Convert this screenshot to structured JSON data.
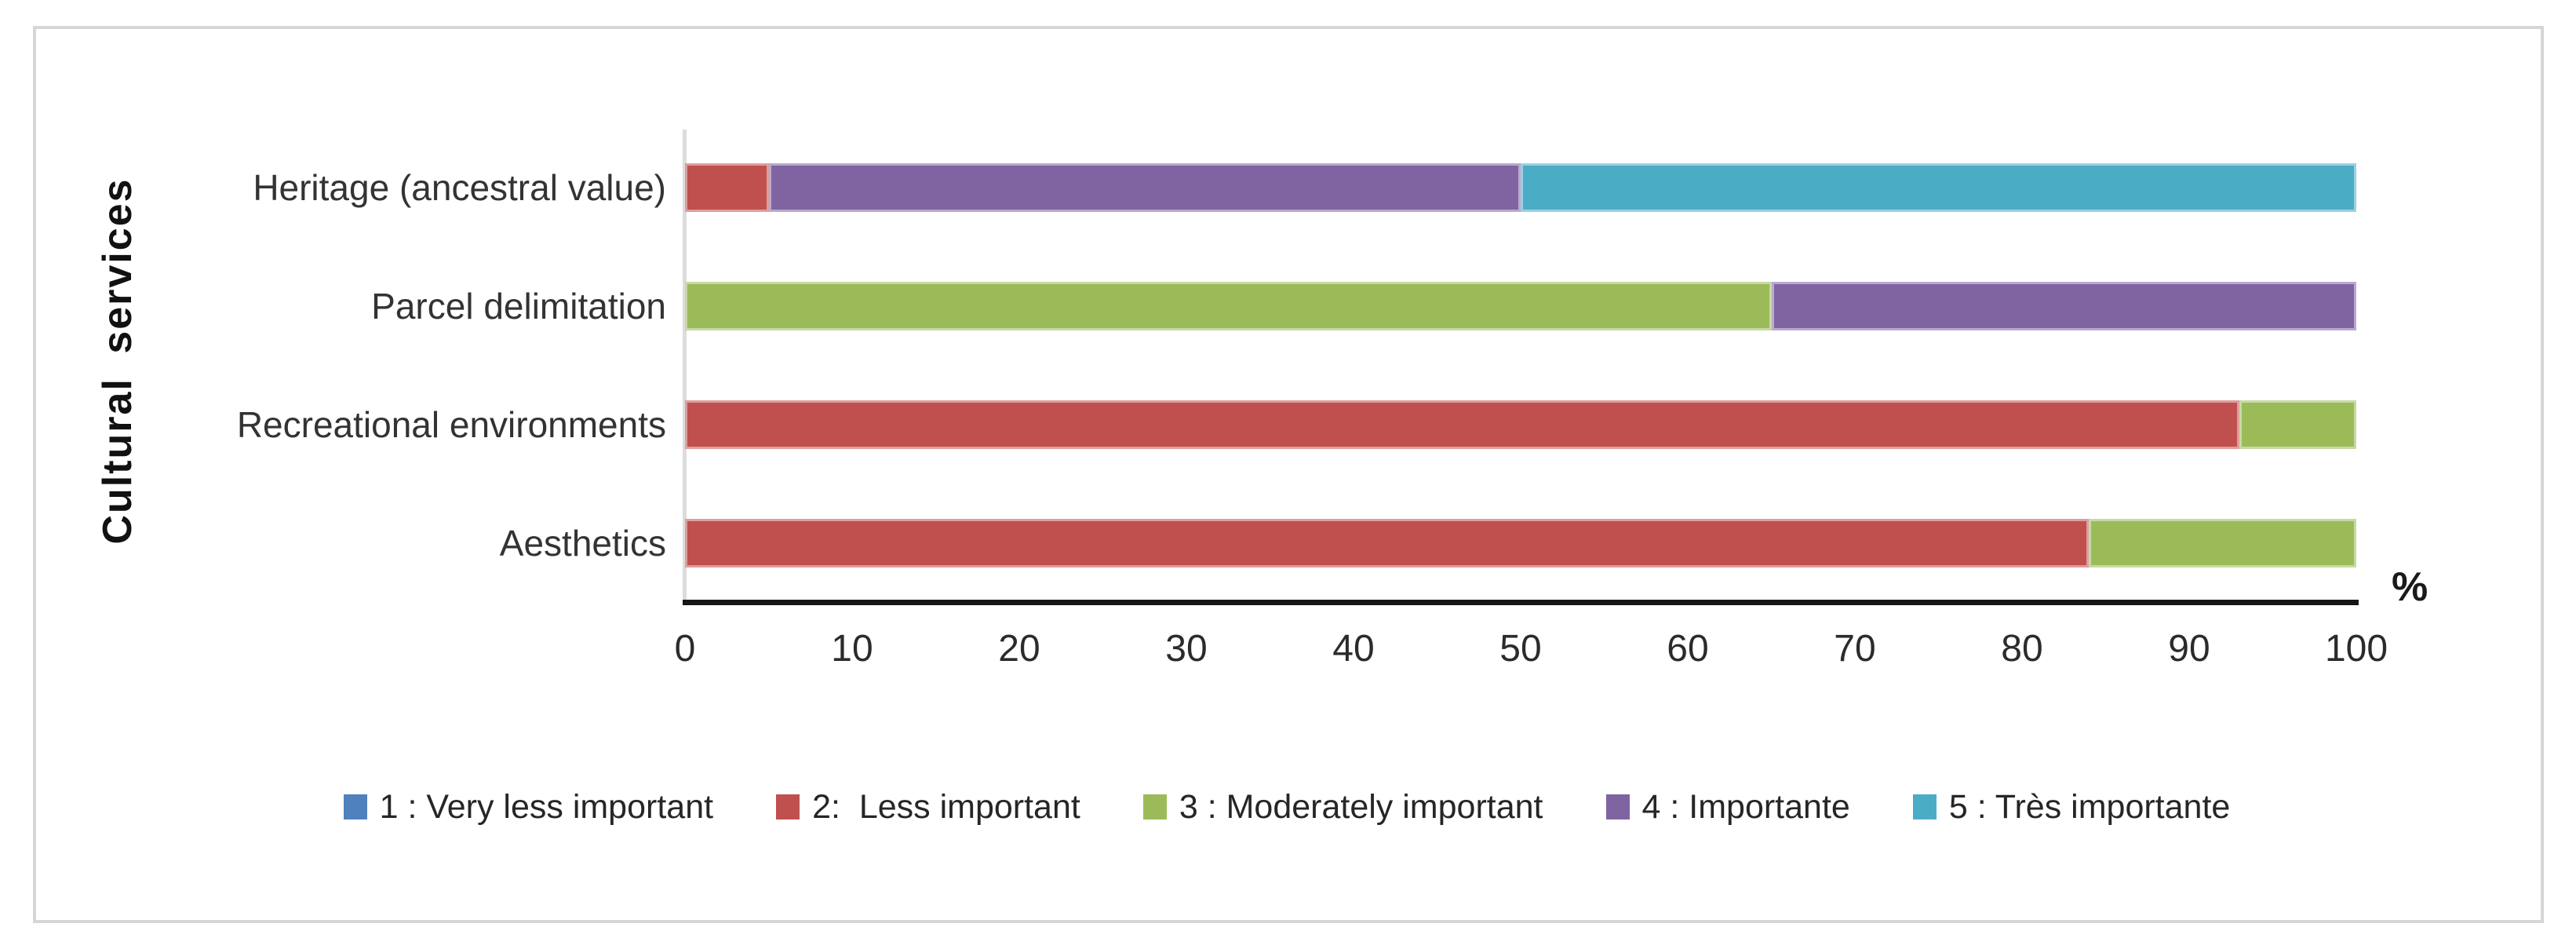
{
  "figure": {
    "background": "#ffffff",
    "border_color": "#d6d6d6"
  },
  "chart_data": {
    "type": "bar",
    "orientation": "horizontal",
    "stacked": true,
    "title": "",
    "ylabel": "Cultural services",
    "xlabel": "%",
    "xlim": [
      0,
      100
    ],
    "xticks": [
      "0",
      "10",
      "20",
      "30",
      "40",
      "50",
      "60",
      "70",
      "80",
      "90",
      "100"
    ],
    "grid": false,
    "legend_position": "bottom",
    "axis_line_color": "#161616",
    "y_axis_line_color": "#dcdcdc",
    "categories": [
      "Heritage (ancestral value)",
      "Parcel delimitation",
      "Recreational environments",
      "Aesthetics"
    ],
    "series": [
      {
        "name": "1 : Very less important",
        "color": "#4F81BD",
        "values": [
          0,
          0,
          0,
          0
        ]
      },
      {
        "name": "2:  Less important",
        "color": "#C0504D",
        "values": [
          5,
          0,
          93,
          84
        ]
      },
      {
        "name": "3 : Moderately important",
        "color": "#9BBB59",
        "values": [
          0,
          65,
          7,
          16
        ]
      },
      {
        "name": "4 : Importante",
        "color": "#8064A2",
        "values": [
          45,
          35,
          0,
          0
        ]
      },
      {
        "name": "5 : Très importante",
        "color": "#4BACC6",
        "values": [
          50,
          0,
          0,
          0
        ]
      }
    ]
  }
}
